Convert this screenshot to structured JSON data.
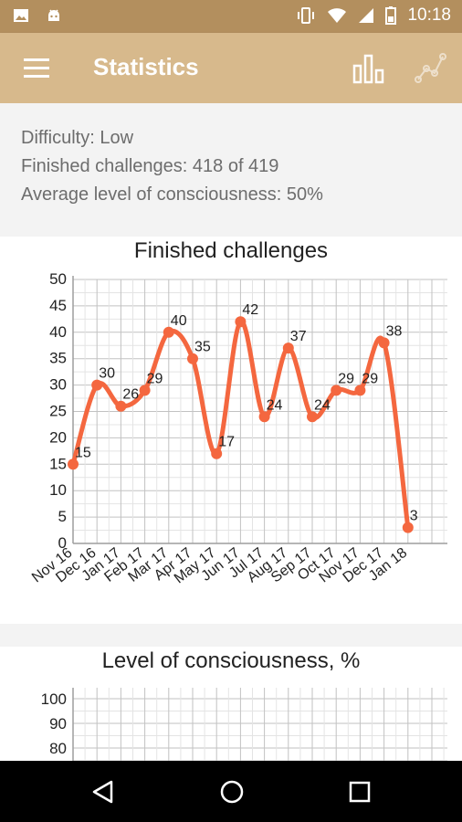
{
  "status_bar": {
    "time": "10:18",
    "icons": [
      "image-icon",
      "android-icon",
      "vibrate-icon",
      "wifi-icon",
      "signal-icon",
      "battery-icon"
    ]
  },
  "toolbar": {
    "title": "Statistics",
    "menu_icon": "hamburger-menu-icon",
    "actions": [
      "bar-chart-icon",
      "line-chart-icon"
    ]
  },
  "summary": {
    "difficulty": "Difficulty: Low",
    "finished": "Finished challenges: 418 of 419",
    "average": "Average level of consciousness: 50%"
  },
  "colors": {
    "accent": "#d7b98c",
    "status_bar": "#b38f5e",
    "series": "#f4673f",
    "grid": "#9e9e9e"
  },
  "chart_data": [
    {
      "type": "line",
      "title": "Finished challenges",
      "categories": [
        "Nov 16",
        "Dec 16",
        "Jan 17",
        "Feb 17",
        "Mar 17",
        "Apr 17",
        "May 17",
        "Jun 17",
        "Jul 17",
        "Aug 17",
        "Sep 17",
        "Oct 17",
        "Nov 17",
        "Dec 17",
        "Jan 18"
      ],
      "values": [
        15,
        30,
        26,
        29,
        40,
        35,
        17,
        42,
        24,
        37,
        24,
        29,
        29,
        38,
        3
      ],
      "ylim": [
        0,
        50
      ],
      "yticks": [
        0,
        5,
        10,
        15,
        20,
        25,
        30,
        35,
        40,
        45,
        50
      ],
      "grid": true,
      "smooth": true,
      "data_labels": true
    },
    {
      "type": "line",
      "title": "Level of consciousness, %",
      "yticks_visible": [
        80,
        90,
        100
      ],
      "grid": true
    }
  ],
  "nav_bar": [
    "back-icon",
    "home-icon",
    "recents-icon"
  ]
}
